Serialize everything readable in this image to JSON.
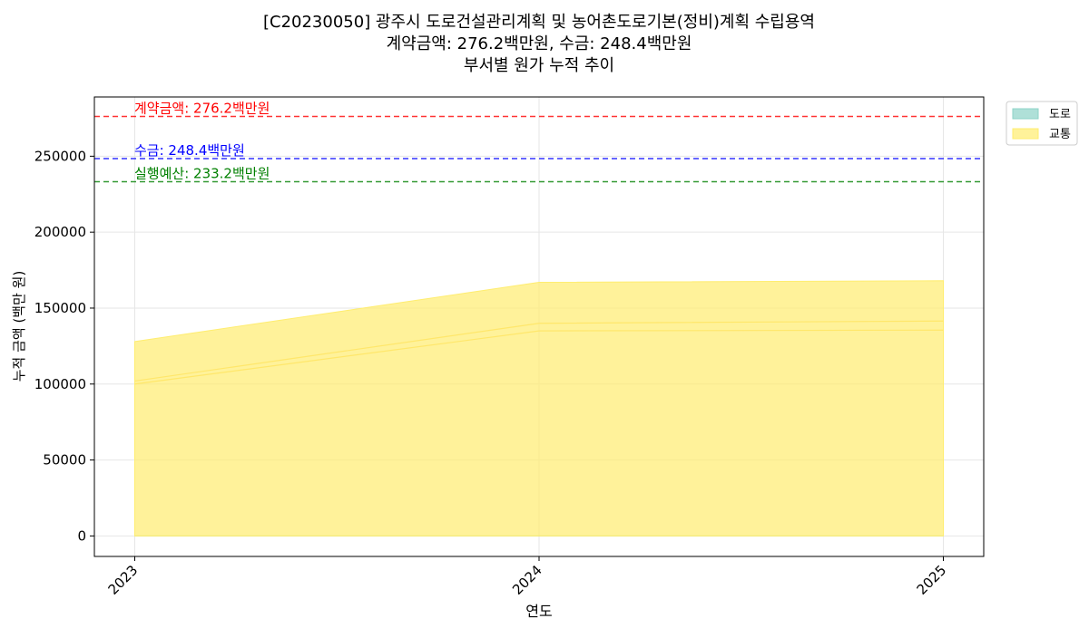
{
  "chart_data": {
    "type": "area",
    "title_lines": [
      "[C20230050] 광주시 도로건설관리계획 및 농어촌도로기본(정비)계획 수립용역",
      "계약금액: 276.2백만원, 수금: 248.4백만원",
      "부서별 원가 누적 추이"
    ],
    "xlabel": "연도",
    "ylabel": "누적 금액 (백만 원)",
    "categories": [
      "2023",
      "2024",
      "2025"
    ],
    "ylim": [
      -13500,
      289000
    ],
    "yticks": [
      0,
      50000,
      100000,
      150000,
      200000,
      250000
    ],
    "ytick_labels": [
      "0",
      "50000",
      "100000",
      "150000",
      "200000",
      "250000"
    ],
    "grid": true,
    "legend_position": "outside-top-right",
    "series": [
      {
        "name": "도로",
        "values": [
          0,
          0,
          0
        ],
        "color": "#8dd3c7"
      },
      {
        "name": "교통",
        "values": [
          128000,
          167000,
          168000
        ],
        "color": "#ffed6f"
      }
    ],
    "inner_lines": [
      {
        "values": [
          102000,
          140000,
          141500
        ]
      },
      {
        "values": [
          100000,
          135000,
          135500
        ]
      }
    ],
    "reference_lines": [
      {
        "label": "계약금액: 276.2백만원",
        "value": 276200,
        "color": "#ff0000"
      },
      {
        "label": "수금: 248.4백만원",
        "value": 248400,
        "color": "#0000ff"
      },
      {
        "label": "실행예산: 233.2백만원",
        "value": 233200,
        "color": "#008000"
      }
    ]
  }
}
